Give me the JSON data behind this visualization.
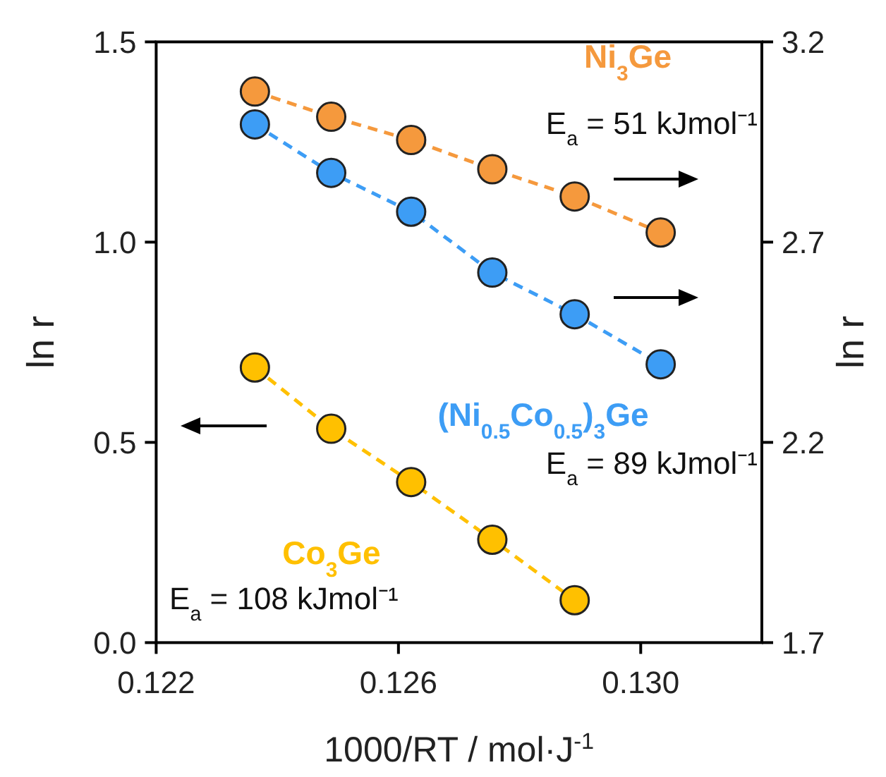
{
  "chart_data": {
    "type": "line",
    "xlabel": "1000/RT / mol·J$^{-1}$",
    "ylabel": "ln r",
    "y2label": "ln r",
    "x": [
      0.12363,
      0.12489,
      0.12621,
      0.12755,
      0.12891,
      0.13033
    ],
    "series": [
      {
        "name": "Ni$_{3}$Ge",
        "color": "#f5993d",
        "axis": "y2",
        "values": [
          3.076,
          3.013,
          2.955,
          2.882,
          2.814,
          2.724
        ]
      },
      {
        "name": "(Ni$_{0.5}$Co$_{0.5}$)$_{3}$Ge",
        "color": "#3d9df5",
        "axis": "y2",
        "values": [
          2.994,
          2.873,
          2.776,
          2.624,
          2.52,
          2.395
        ]
      },
      {
        "name": "Co$_{3}$Ge",
        "color": "#ffc000",
        "values": [
          0.687,
          0.534,
          0.401,
          0.257,
          0.106,
          null
        ]
      }
    ],
    "annotations": [
      "E$_{a}$ = 51 kJmol⁻¹",
      "E$_{a}$ = 89 kJmol⁻¹",
      "E$_{a}$ = 108 kJmol⁻¹"
    ],
    "xlim": [
      0.122,
      0.132
    ],
    "xticks": [
      0.122,
      0.126,
      {
        "value": 0.13,
        "label": "0.130"
      }
    ],
    "ylim": [
      0,
      1.5
    ],
    "yticks": [
      {
        "value": 0,
        "label": "0.0"
      },
      {
        "value": 0.5,
        "label": "0.5"
      },
      {
        "value": 1,
        "label": "1.0"
      },
      {
        "value": 1.5,
        "label": "1.5"
      }
    ],
    "y2lim": [
      1.7,
      3.2
    ],
    "y2ticks": [
      1.7,
      2.2,
      2.7,
      3.2
    ],
    "grid": false,
    "marker": "circle",
    "line_style": "dashed"
  }
}
